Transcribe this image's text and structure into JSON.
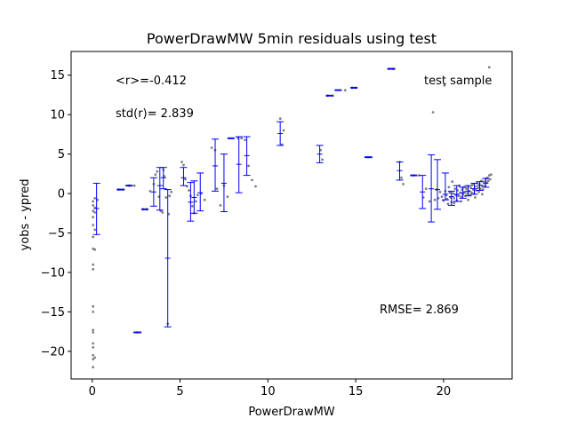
{
  "chart_data": {
    "type": "scatter",
    "title": "PowerDrawMW 5min residuals using test",
    "xlabel": "PowerDrawMW",
    "ylabel": "yobs - ypred",
    "xlim": [
      -1.2,
      23.9
    ],
    "ylim": [
      -23.5,
      18
    ],
    "xticks": [
      0,
      5,
      10,
      15,
      20
    ],
    "yticks": [
      -20,
      -15,
      -10,
      -5,
      0,
      5,
      10,
      15
    ],
    "grid": false,
    "colors": {
      "points": "#808080",
      "errorbars": "#0000ff"
    },
    "annotations": {
      "r_mean": "<r>=-0.412",
      "r_std": "std(r)= 2.839",
      "legend_text": "test sample",
      "rmse": "RMSE= 2.869"
    },
    "points": [
      [
        0.05,
        -1
      ],
      [
        0.05,
        -1.5
      ],
      [
        0.05,
        -2.2
      ],
      [
        0.05,
        -3
      ],
      [
        0.05,
        -4
      ],
      [
        0.05,
        -5.5
      ],
      [
        0.05,
        -7
      ],
      [
        0.05,
        -9
      ],
      [
        0.05,
        -9.6
      ],
      [
        0.05,
        -14.3
      ],
      [
        0.05,
        -15
      ],
      [
        0.05,
        -17.3
      ],
      [
        0.05,
        -17.6
      ],
      [
        0.05,
        -19
      ],
      [
        0.05,
        -19.5
      ],
      [
        0.05,
        -20.5
      ],
      [
        0.05,
        -21
      ],
      [
        0.05,
        -22
      ],
      [
        0.15,
        -0.6
      ],
      [
        0.15,
        -1.8
      ],
      [
        0.15,
        -2.4
      ],
      [
        0.15,
        -4.6
      ],
      [
        0.15,
        -7.1
      ],
      [
        0.15,
        -20.8
      ],
      [
        0.3,
        -0.8
      ],
      [
        1.5,
        0.5
      ],
      [
        1.8,
        0.5
      ],
      [
        2.1,
        1
      ],
      [
        2.4,
        1
      ],
      [
        2.55,
        -17.6
      ],
      [
        2.75,
        -17.6
      ],
      [
        2.9,
        -2
      ],
      [
        3.1,
        -2
      ],
      [
        3.3,
        0.3
      ],
      [
        3.5,
        1.2
      ],
      [
        3.6,
        2.4
      ],
      [
        3.7,
        2.8
      ],
      [
        3.8,
        -0.4
      ],
      [
        3.9,
        -2.2
      ],
      [
        4.0,
        -2.4
      ],
      [
        4.05,
        3.0
      ],
      [
        4.1,
        2.2
      ],
      [
        4.2,
        -0.5
      ],
      [
        4.3,
        -16.5
      ],
      [
        4.35,
        -2.6
      ],
      [
        4.4,
        -0.3
      ],
      [
        4.5,
        0.2
      ],
      [
        5.1,
        4.0
      ],
      [
        5.2,
        3.6
      ],
      [
        5.3,
        1.8
      ],
      [
        5.4,
        0.9
      ],
      [
        5.5,
        0.4
      ],
      [
        5.6,
        -0.3
      ],
      [
        5.7,
        -1.6
      ],
      [
        5.8,
        -2.5
      ],
      [
        5.9,
        -1.0
      ],
      [
        6.0,
        -0.2
      ],
      [
        6.2,
        0
      ],
      [
        6.4,
        -0.8
      ],
      [
        6.8,
        5.8
      ],
      [
        7.0,
        5.5
      ],
      [
        7.1,
        0.6
      ],
      [
        7.3,
        -1.5
      ],
      [
        7.5,
        1.0
      ],
      [
        7.7,
        -0.4
      ],
      [
        8.3,
        7
      ],
      [
        8.5,
        7
      ],
      [
        8.7,
        6.8
      ],
      [
        8.9,
        3.5
      ],
      [
        9.1,
        1.7
      ],
      [
        9.3,
        0.9
      ],
      [
        10.7,
        9.5
      ],
      [
        10.8,
        6.2
      ],
      [
        10.9,
        8.0
      ],
      [
        13.0,
        5.5
      ],
      [
        13.1,
        4.3
      ],
      [
        13.4,
        12.4
      ],
      [
        13.7,
        12.4
      ],
      [
        14.4,
        13.1
      ],
      [
        14.8,
        13.4
      ],
      [
        15.0,
        13.4
      ],
      [
        15.7,
        4.6
      ],
      [
        15.9,
        4.6
      ],
      [
        16.9,
        15.8
      ],
      [
        17.1,
        15.8
      ],
      [
        17.2,
        15.8
      ],
      [
        17.5,
        4.0
      ],
      [
        17.6,
        2.0
      ],
      [
        17.7,
        1.2
      ],
      [
        18.3,
        2.3
      ],
      [
        18.6,
        2.3
      ],
      [
        18.85,
        -0.5
      ],
      [
        19.0,
        0.6
      ],
      [
        19.2,
        -1.0
      ],
      [
        19.4,
        10.3
      ],
      [
        19.5,
        -0.8
      ],
      [
        19.6,
        0.5
      ],
      [
        19.7,
        -0.6
      ],
      [
        19.8,
        0.2
      ],
      [
        19.9,
        -0.4
      ],
      [
        20.0,
        -0.9
      ],
      [
        20.05,
        13.7
      ],
      [
        20.1,
        0.3
      ],
      [
        20.15,
        -0.2
      ],
      [
        20.2,
        -0.7
      ],
      [
        20.25,
        -1.3
      ],
      [
        20.3,
        0.8
      ],
      [
        20.35,
        0.1
      ],
      [
        20.4,
        -0.5
      ],
      [
        20.45,
        -1.1
      ],
      [
        20.5,
        1.5
      ],
      [
        20.55,
        0
      ],
      [
        20.6,
        -0.6
      ],
      [
        20.65,
        0.6
      ],
      [
        20.7,
        -0.2
      ],
      [
        20.75,
        -0.9
      ],
      [
        20.8,
        0.4
      ],
      [
        20.85,
        -0.3
      ],
      [
        20.9,
        1.0
      ],
      [
        20.95,
        0.1
      ],
      [
        21.0,
        -0.4
      ],
      [
        21.05,
        0.5
      ],
      [
        21.1,
        -0.1
      ],
      [
        21.15,
        0.8
      ],
      [
        21.2,
        0.2
      ],
      [
        21.25,
        -0.3
      ],
      [
        21.3,
        0.6
      ],
      [
        21.35,
        0
      ],
      [
        21.4,
        0.9
      ],
      [
        21.45,
        0.3
      ],
      [
        21.5,
        -0.2
      ],
      [
        21.55,
        0.7
      ],
      [
        21.6,
        0.1
      ],
      [
        21.65,
        1.1
      ],
      [
        21.7,
        0.5
      ],
      [
        21.75,
        0
      ],
      [
        21.8,
        0.9
      ],
      [
        21.85,
        0.4
      ],
      [
        21.9,
        1.3
      ],
      [
        21.95,
        0.7
      ],
      [
        22.0,
        0.2
      ],
      [
        22.05,
        1.2
      ],
      [
        22.1,
        0.6
      ],
      [
        22.15,
        1.6
      ],
      [
        22.2,
        1.0
      ],
      [
        22.25,
        0.5
      ],
      [
        22.3,
        1.5
      ],
      [
        22.35,
        1.0
      ],
      [
        22.4,
        1.9
      ],
      [
        22.45,
        1.4
      ],
      [
        22.5,
        2.0
      ],
      [
        22.55,
        1.6
      ],
      [
        22.6,
        2.3
      ],
      [
        22.65,
        1.8
      ],
      [
        22.6,
        16.0
      ],
      [
        20.6,
        -1.2
      ],
      [
        21.0,
        -1.0
      ],
      [
        21.4,
        -0.8
      ],
      [
        21.8,
        -0.5
      ],
      [
        22.2,
        -0.1
      ],
      [
        22.7,
        2.4
      ]
    ],
    "errorbars": [
      {
        "x": 0.25,
        "y": -1.9,
        "ylo": -5.2,
        "yhi": 1.3
      },
      {
        "x": 1.6,
        "y": 0.5,
        "ylo": 0.45,
        "yhi": 0.55
      },
      {
        "x": 2.1,
        "y": 1.0,
        "ylo": 0.95,
        "yhi": 1.05
      },
      {
        "x": 2.55,
        "y": -17.6,
        "ylo": -17.65,
        "yhi": -17.55
      },
      {
        "x": 3.0,
        "y": -2.0,
        "ylo": -2.05,
        "yhi": -1.95
      },
      {
        "x": 3.5,
        "y": 0.2,
        "ylo": -1.6,
        "yhi": 2.0
      },
      {
        "x": 3.85,
        "y": 1.0,
        "ylo": -2.1,
        "yhi": 3.3
      },
      {
        "x": 4.05,
        "y": 2.0,
        "ylo": 0.6,
        "yhi": 3.3
      },
      {
        "x": 4.3,
        "y": -8.2,
        "ylo": -16.9,
        "yhi": 0.5
      },
      {
        "x": 5.2,
        "y": 2.0,
        "ylo": 1.0,
        "yhi": 3.3
      },
      {
        "x": 5.6,
        "y": -1.1,
        "ylo": -3.5,
        "yhi": 1.4
      },
      {
        "x": 5.8,
        "y": -0.5,
        "ylo": -2.5,
        "yhi": 1.6
      },
      {
        "x": 6.15,
        "y": 0.1,
        "ylo": -2.2,
        "yhi": 2.6
      },
      {
        "x": 7.0,
        "y": 3.5,
        "ylo": 0.3,
        "yhi": 6.9
      },
      {
        "x": 7.5,
        "y": 1.3,
        "ylo": -2.3,
        "yhi": 5.0
      },
      {
        "x": 7.9,
        "y": 7.0,
        "ylo": 6.95,
        "yhi": 7.05
      },
      {
        "x": 8.35,
        "y": 3.7,
        "ylo": 0.1,
        "yhi": 7.2
      },
      {
        "x": 8.8,
        "y": 4.8,
        "ylo": 2.3,
        "yhi": 7.2
      },
      {
        "x": 10.7,
        "y": 7.6,
        "ylo": 6.1,
        "yhi": 9.1
      },
      {
        "x": 12.95,
        "y": 5.0,
        "ylo": 3.9,
        "yhi": 6.1
      },
      {
        "x": 13.5,
        "y": 12.4,
        "ylo": 12.35,
        "yhi": 12.45
      },
      {
        "x": 14.0,
        "y": 13.1,
        "ylo": 13.05,
        "yhi": 13.15
      },
      {
        "x": 14.9,
        "y": 13.4,
        "ylo": 13.35,
        "yhi": 13.45
      },
      {
        "x": 15.7,
        "y": 4.6,
        "ylo": 4.55,
        "yhi": 4.65
      },
      {
        "x": 17.0,
        "y": 15.8,
        "ylo": 15.75,
        "yhi": 15.85
      },
      {
        "x": 17.5,
        "y": 2.9,
        "ylo": 1.7,
        "yhi": 4.0
      },
      {
        "x": 18.3,
        "y": 2.3,
        "ylo": 2.25,
        "yhi": 2.35
      },
      {
        "x": 18.8,
        "y": 0.2,
        "ylo": -1.9,
        "yhi": 2.3
      },
      {
        "x": 19.3,
        "y": 0.6,
        "ylo": -3.6,
        "yhi": 4.9
      },
      {
        "x": 19.65,
        "y": 0.5,
        "ylo": -2.0,
        "yhi": 4.3
      },
      {
        "x": 20.1,
        "y": -0.1,
        "ylo": -0.8,
        "yhi": 2.6
      },
      {
        "x": 20.45,
        "y": -0.4,
        "ylo": -1.5,
        "yhi": 0.3
      },
      {
        "x": 20.75,
        "y": -0.1,
        "ylo": -1.0,
        "yhi": 1.0
      },
      {
        "x": 21.1,
        "y": 0.1,
        "ylo": -0.6,
        "yhi": 0.8
      },
      {
        "x": 21.4,
        "y": 0.3,
        "ylo": -0.3,
        "yhi": 1.0
      },
      {
        "x": 21.75,
        "y": 0.6,
        "ylo": -0.1,
        "yhi": 1.3
      },
      {
        "x": 22.05,
        "y": 1.0,
        "ylo": 0.4,
        "yhi": 1.5
      },
      {
        "x": 22.4,
        "y": 1.3,
        "ylo": 0.8,
        "yhi": 1.9
      }
    ]
  }
}
